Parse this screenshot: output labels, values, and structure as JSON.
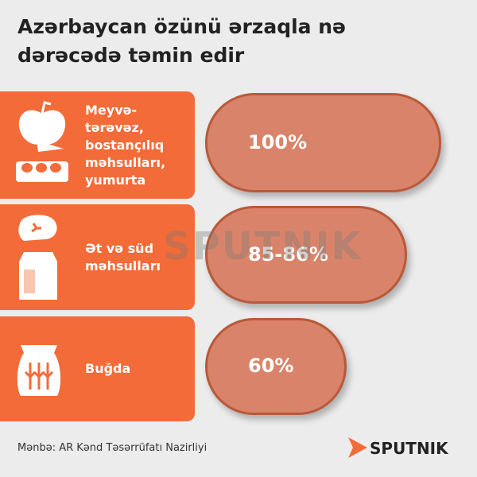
{
  "chart_data": {
    "type": "bar",
    "title": "Azərbaycan özünü ərzaqla nə dərəcədə təmin edir",
    "categories": [
      "Meyvə-tərəvəz, bostançılıq məhsulları, yumurta",
      "Ət və süd məhsulları",
      "Buğda"
    ],
    "values": [
      100,
      85.5,
      60
    ],
    "value_labels": [
      "100%",
      "85-86%",
      "60%"
    ],
    "xlim": [
      0,
      100
    ],
    "color": "#d9846a",
    "category_color": "#f36b38",
    "source": "Mənbə: AR Kənd Təsərrüfatı Nazirliyi",
    "brand": "SPUTNIK"
  }
}
